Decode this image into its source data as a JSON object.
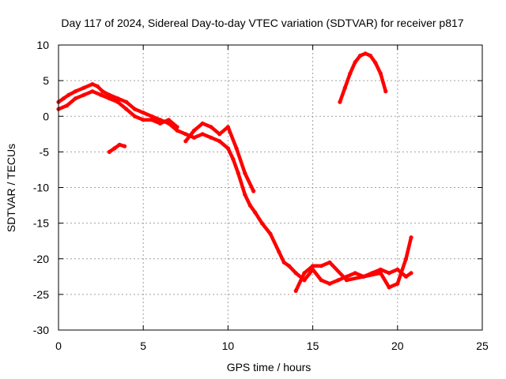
{
  "chart_data": {
    "type": "line",
    "title": "Day 117 of 2024, Sidereal Day-to-day VTEC variation (SDTVAR) for receiver p817",
    "xlabel": "GPS time / hours",
    "ylabel": "SDTVAR / TECUs",
    "xlim": [
      0,
      25
    ],
    "ylim": [
      -30,
      10
    ],
    "xticks": [
      0,
      5,
      10,
      15,
      20,
      25
    ],
    "yticks": [
      -30,
      -25,
      -20,
      -15,
      -10,
      -5,
      0,
      5,
      10
    ],
    "grid": true,
    "color": "#ff0000",
    "series": [
      {
        "name": "track-main",
        "x": [
          0.0,
          0.3,
          0.6,
          1.0,
          1.5,
          2.0,
          2.3,
          2.6,
          3.0,
          3.5,
          4.0,
          4.5,
          5.0,
          5.5,
          6.0,
          6.5,
          7.0,
          7.5,
          8.0,
          8.5,
          9.0,
          9.5,
          10.0,
          10.3,
          10.6,
          11.0,
          11.3,
          11.6,
          12.0,
          12.5,
          13.0,
          13.3,
          13.6,
          14.0,
          14.5,
          15.0,
          15.5,
          16.0,
          16.5,
          17.0,
          17.5,
          18.0,
          18.5,
          19.0,
          19.5,
          20.0,
          20.5,
          20.8
        ],
        "y": [
          2.0,
          2.5,
          3.0,
          3.5,
          4.0,
          4.5,
          4.2,
          3.5,
          3.0,
          2.5,
          2.0,
          1.0,
          0.5,
          0.0,
          -0.5,
          -1.0,
          -2.0,
          -2.5,
          -3.0,
          -2.5,
          -3.0,
          -3.5,
          -4.5,
          -6.0,
          -8.0,
          -11.0,
          -12.5,
          -13.5,
          -15.0,
          -16.5,
          -19.0,
          -20.5,
          -21.0,
          -22.0,
          -23.0,
          -21.5,
          -23.0,
          -23.5,
          -23.0,
          -22.5,
          -22.0,
          -22.5,
          -22.0,
          -21.5,
          -22.0,
          -21.5,
          -22.5,
          -22.0
        ]
      },
      {
        "name": "track-upper-band",
        "x": [
          0.0,
          0.5,
          1.0,
          1.5,
          2.0,
          2.5,
          3.0,
          3.5,
          4.0,
          4.5,
          5.0,
          5.5,
          6.0,
          6.5,
          7.0
        ],
        "y": [
          1.0,
          1.5,
          2.5,
          3.0,
          3.5,
          3.0,
          2.5,
          2.0,
          1.0,
          0.0,
          -0.5,
          -0.5,
          -1.0,
          -0.5,
          -1.5
        ]
      },
      {
        "name": "track-mid",
        "x": [
          7.5,
          8.0,
          8.5,
          9.0,
          9.5,
          10.0,
          10.5,
          11.0,
          11.5
        ],
        "y": [
          -3.5,
          -2.0,
          -1.0,
          -1.5,
          -2.5,
          -1.5,
          -4.5,
          -8.0,
          -10.5
        ]
      },
      {
        "name": "track-end-branch",
        "x": [
          14.0,
          14.5,
          15.0,
          15.5,
          16.0,
          17.0,
          18.0,
          19.0,
          19.5,
          20.0,
          20.5,
          20.8
        ],
        "y": [
          -24.5,
          -22.0,
          -21.0,
          -21.0,
          -20.5,
          -23.0,
          -22.5,
          -22.0,
          -24.0,
          -23.5,
          -20.0,
          -17.0
        ]
      },
      {
        "name": "track-short-segment",
        "x": [
          3.0,
          3.3,
          3.6,
          3.9
        ],
        "y": [
          -5.0,
          -4.5,
          -4.0,
          -4.2
        ]
      },
      {
        "name": "track-arc",
        "x": [
          16.6,
          16.9,
          17.2,
          17.5,
          17.8,
          18.1,
          18.4,
          18.7,
          19.0,
          19.3
        ],
        "y": [
          2.0,
          4.0,
          6.0,
          7.6,
          8.5,
          8.8,
          8.5,
          7.5,
          6.0,
          3.5
        ]
      }
    ]
  }
}
